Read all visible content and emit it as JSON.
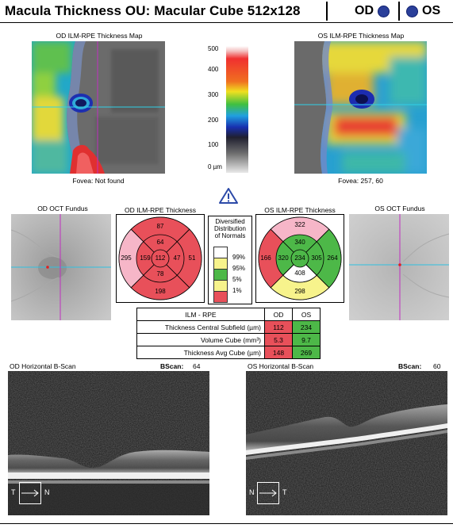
{
  "header": {
    "title": "Macula Thickness OU: Macular Cube 512x128",
    "od_label": "OD",
    "os_label": "OS"
  },
  "maps": {
    "od_title": "OD ILM-RPE Thickness Map",
    "os_title": "OS ILM-RPE Thickness Map",
    "od_fovea": "Fovea: Not found",
    "os_fovea": "Fovea: 257, 60"
  },
  "scale": {
    "ticks": [
      "500",
      "400",
      "300",
      "200",
      "100",
      "0 µm"
    ]
  },
  "fundus": {
    "od_title": "OD OCT Fundus",
    "os_title": "OS OCT Fundus"
  },
  "od_etdrs": {
    "title": "OD ILM-RPE Thickness",
    "center": "112",
    "inner": {
      "top": "64",
      "right": "47",
      "bottom": "78",
      "left": "159"
    },
    "outer": {
      "top": "87",
      "right": "51",
      "bottom": "198",
      "left": "295"
    }
  },
  "os_etdrs": {
    "title": "OS ILM-RPE Thickness",
    "center": "234",
    "inner": {
      "top": "340",
      "right": "305",
      "bottom": "408",
      "left": "320"
    },
    "outer": {
      "top": "322",
      "right": "264",
      "bottom": "298",
      "left": "166"
    }
  },
  "normals": {
    "title_lines": [
      "Diversified",
      "Distribution",
      "of Normals"
    ],
    "levels": [
      "99%",
      "95%",
      "5%",
      "1%"
    ]
  },
  "table": {
    "header": [
      "ILM - RPE",
      "OD",
      "OS"
    ],
    "rows": [
      {
        "label": "Thickness Central Subfield (µm)",
        "od": "112",
        "os": "234"
      },
      {
        "label": "Volume Cube (mm³)",
        "od": "5.3",
        "os": "9.7"
      },
      {
        "label": "Thickness Avg Cube (µm)",
        "od": "148",
        "os": "269"
      }
    ]
  },
  "bscan": {
    "od_title": "OD Horizontal B-Scan",
    "os_title": "OS Horizontal B-Scan",
    "bscan_label": "BScan:",
    "od_bscan": "64",
    "os_bscan": "60",
    "od_left": "T",
    "od_right": "N",
    "os_left": "N",
    "os_right": "T"
  },
  "colors": {
    "normal_green": "#4db848",
    "borderline_yellow": "#f7f38c",
    "thin_red": "#e8505a",
    "thick_pink": "#f6b6c8",
    "white": "#ffffff"
  }
}
